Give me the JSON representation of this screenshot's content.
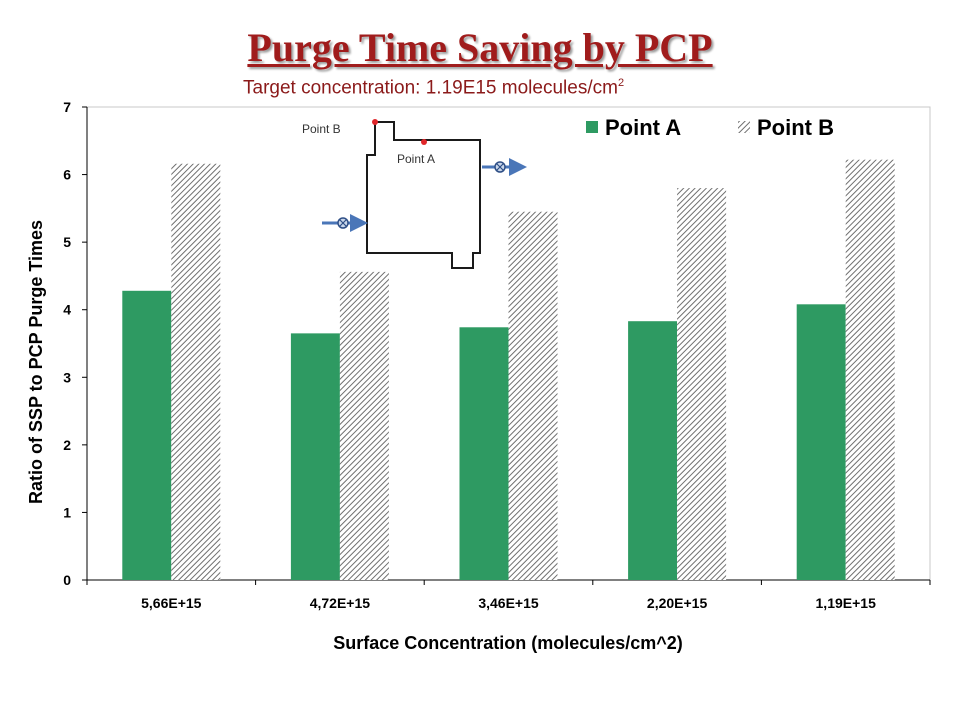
{
  "title": "Purge Time Saving by PCP",
  "subtitle": {
    "text": "Target concentration: 1.19E15 molecules/cm",
    "superscript": "2"
  },
  "colors": {
    "title": "#a01c1c",
    "subtitle": "#8b1a1a",
    "point_a": "#2e9a62",
    "point_b_hatch": "#6f6f6f"
  },
  "inset_diagram": {
    "point_a_label": "Point A",
    "point_b_label": "Point B"
  },
  "chart_data": {
    "type": "bar",
    "xlabel": "Surface Concentration (molecules/cm^2)",
    "ylabel": "Ratio of SSP to PCP  Purge Times",
    "ylim": [
      0,
      7
    ],
    "yticks": [
      0,
      1,
      2,
      3,
      4,
      5,
      6,
      7
    ],
    "grid": false,
    "legend_position": "top-right",
    "categories": [
      "5,66E+15",
      "4,72E+15",
      "3,46E+15",
      "2,20E+15",
      "1,19E+15"
    ],
    "series": [
      {
        "name": "Point A",
        "style": "solid-green",
        "values": [
          4.28,
          3.65,
          3.74,
          3.83,
          4.08
        ]
      },
      {
        "name": "Point B",
        "style": "hatched-gray",
        "values": [
          6.16,
          4.56,
          5.45,
          5.8,
          6.22
        ]
      }
    ]
  }
}
